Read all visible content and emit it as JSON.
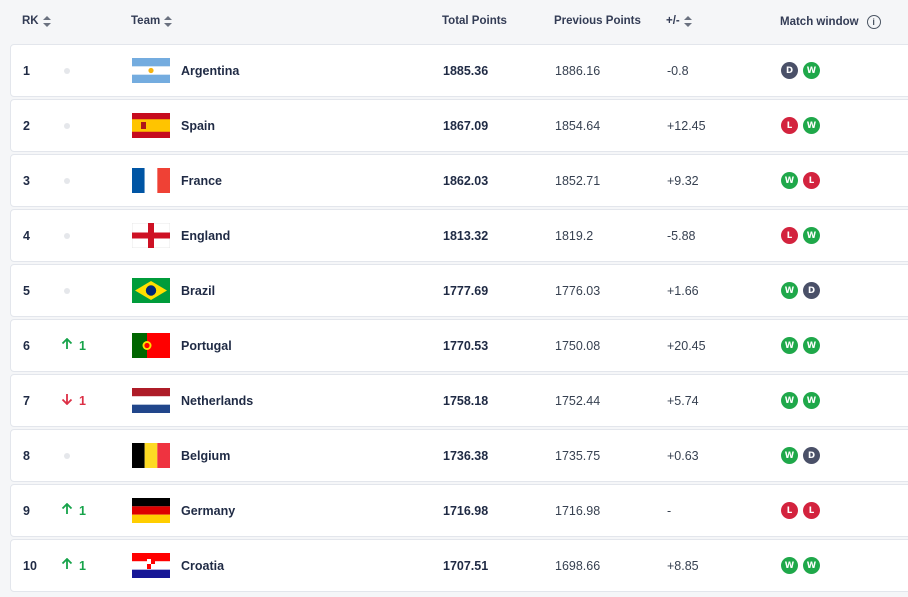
{
  "header": {
    "rank": "RK",
    "team": "Team",
    "total_points": "Total Points",
    "previous_points": "Previous Points",
    "diff": "+/-",
    "match_window": "Match window"
  },
  "colors": {
    "win": "#1fa84a",
    "loss": "#d3233e",
    "draw": "#4a5068",
    "up": "#16a34a",
    "down": "#dc2f45"
  },
  "rows": [
    {
      "rank": "1",
      "move": "none",
      "move_value": "",
      "team": "Argentina",
      "flag": "argentina",
      "total": "1885.36",
      "previous": "1886.16",
      "diff": "-0.8",
      "results": [
        "D",
        "W"
      ]
    },
    {
      "rank": "2",
      "move": "none",
      "move_value": "",
      "team": "Spain",
      "flag": "spain",
      "total": "1867.09",
      "previous": "1854.64",
      "diff": "+12.45",
      "results": [
        "L",
        "W"
      ]
    },
    {
      "rank": "3",
      "move": "none",
      "move_value": "",
      "team": "France",
      "flag": "france",
      "total": "1862.03",
      "previous": "1852.71",
      "diff": "+9.32",
      "results": [
        "W",
        "L"
      ]
    },
    {
      "rank": "4",
      "move": "none",
      "move_value": "",
      "team": "England",
      "flag": "england",
      "total": "1813.32",
      "previous": "1819.2",
      "diff": "-5.88",
      "results": [
        "L",
        "W"
      ]
    },
    {
      "rank": "5",
      "move": "none",
      "move_value": "",
      "team": "Brazil",
      "flag": "brazil",
      "total": "1777.69",
      "previous": "1776.03",
      "diff": "+1.66",
      "results": [
        "W",
        "D"
      ]
    },
    {
      "rank": "6",
      "move": "up",
      "move_value": "1",
      "team": "Portugal",
      "flag": "portugal",
      "total": "1770.53",
      "previous": "1750.08",
      "diff": "+20.45",
      "results": [
        "W",
        "W"
      ]
    },
    {
      "rank": "7",
      "move": "down",
      "move_value": "1",
      "team": "Netherlands",
      "flag": "netherlands",
      "total": "1758.18",
      "previous": "1752.44",
      "diff": "+5.74",
      "results": [
        "W",
        "W"
      ]
    },
    {
      "rank": "8",
      "move": "none",
      "move_value": "",
      "team": "Belgium",
      "flag": "belgium",
      "total": "1736.38",
      "previous": "1735.75",
      "diff": "+0.63",
      "results": [
        "W",
        "D"
      ]
    },
    {
      "rank": "9",
      "move": "up",
      "move_value": "1",
      "team": "Germany",
      "flag": "germany",
      "total": "1716.98",
      "previous": "1716.98",
      "diff": "-",
      "results": [
        "L",
        "L"
      ]
    },
    {
      "rank": "10",
      "move": "up",
      "move_value": "1",
      "team": "Croatia",
      "flag": "croatia",
      "total": "1707.51",
      "previous": "1698.66",
      "diff": "+8.85",
      "results": [
        "W",
        "W"
      ]
    }
  ]
}
